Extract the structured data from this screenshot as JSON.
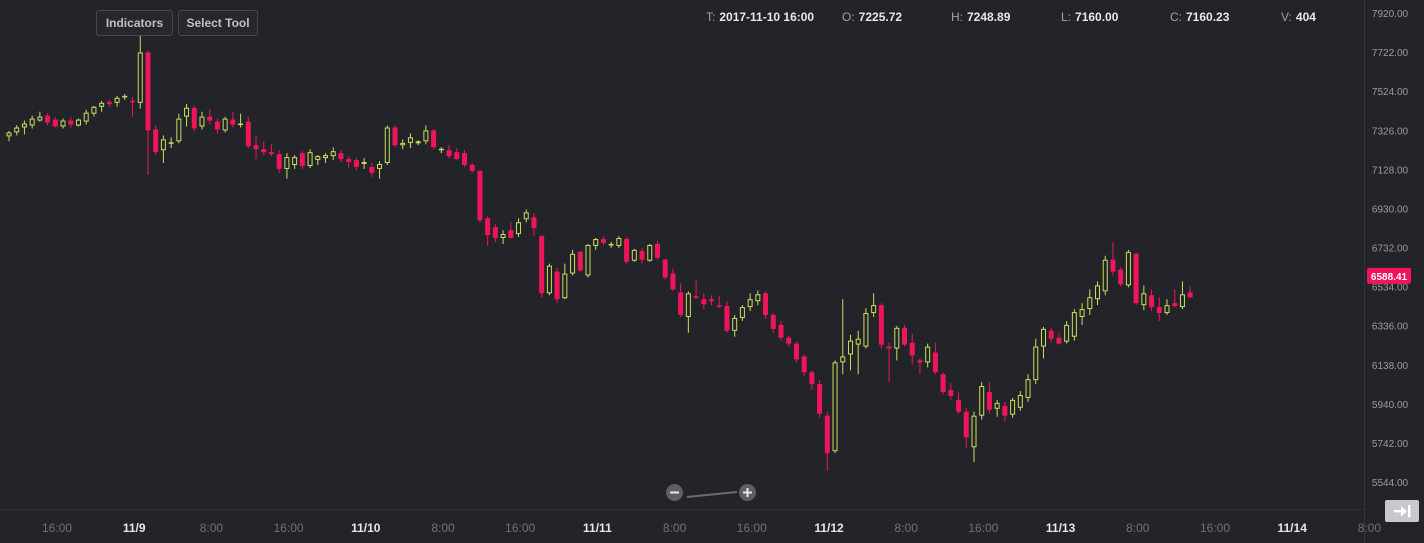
{
  "toolbar": {
    "indicators_label": "Indicators",
    "select_tool_label": "Select Tool"
  },
  "ohlc": {
    "t_label": "T:",
    "t_value": "2017-11-10 16:00",
    "o_label": "O:",
    "o_value": "7225.72",
    "h_label": "H:",
    "h_value": "7248.89",
    "l_label": "L:",
    "l_value": "7160.00",
    "c_label": "C:",
    "c_value": "7160.23",
    "v_label": "V:",
    "v_value": "404"
  },
  "zoom": {
    "out_icon": "minus-icon",
    "in_icon": "plus-icon"
  },
  "go_latest_icon": "arrow-to-end-icon",
  "colors": {
    "background": "#232429",
    "up": "#c7df5e",
    "down": "#f0145a",
    "axis_text": "#9a9ca1",
    "price_tag": "#f0145a"
  },
  "chart_data": {
    "type": "candlestick",
    "interval": "1 hour",
    "y_axis": {
      "ticks": [
        "7920.00",
        "7722.00",
        "7524.00",
        "7326.00",
        "7128.00",
        "6930.00",
        "6732.00",
        "6534.00",
        "6336.00",
        "6138.00",
        "5940.00",
        "5742.00",
        "5544.00"
      ],
      "range": [
        5450,
        7930
      ],
      "position": "right"
    },
    "x_axis": {
      "ticks": [
        {
          "label": "16:00",
          "bold": false
        },
        {
          "label": "11/9",
          "bold": true
        },
        {
          "label": "8:00",
          "bold": false
        },
        {
          "label": "16:00",
          "bold": false
        },
        {
          "label": "11/10",
          "bold": true
        },
        {
          "label": "8:00",
          "bold": false
        },
        {
          "label": "16:00",
          "bold": false
        },
        {
          "label": "11/11",
          "bold": true
        },
        {
          "label": "8:00",
          "bold": false
        },
        {
          "label": "16:00",
          "bold": false
        },
        {
          "label": "11/12",
          "bold": true
        },
        {
          "label": "8:00",
          "bold": false
        },
        {
          "label": "16:00",
          "bold": false
        },
        {
          "label": "11/13",
          "bold": true
        },
        {
          "label": "8:00",
          "bold": false
        },
        {
          "label": "16:00",
          "bold": false
        },
        {
          "label": "11/14",
          "bold": true
        },
        {
          "label": "8:00",
          "bold": false
        }
      ]
    },
    "last_price": "6588.41",
    "last_price_value": 6588.41,
    "grid": false,
    "candles": [
      {
        "o": 7295,
        "h": 7322,
        "l": 7270,
        "c": 7315
      },
      {
        "o": 7315,
        "h": 7352,
        "l": 7300,
        "c": 7340
      },
      {
        "o": 7340,
        "h": 7375,
        "l": 7305,
        "c": 7360
      },
      {
        "o": 7350,
        "h": 7400,
        "l": 7335,
        "c": 7385
      },
      {
        "o": 7375,
        "h": 7420,
        "l": 7370,
        "c": 7395
      },
      {
        "o": 7400,
        "h": 7412,
        "l": 7350,
        "c": 7365
      },
      {
        "o": 7380,
        "h": 7392,
        "l": 7340,
        "c": 7345
      },
      {
        "o": 7345,
        "h": 7385,
        "l": 7335,
        "c": 7375
      },
      {
        "o": 7375,
        "h": 7395,
        "l": 7340,
        "c": 7355
      },
      {
        "o": 7350,
        "h": 7385,
        "l": 7345,
        "c": 7380
      },
      {
        "o": 7370,
        "h": 7430,
        "l": 7355,
        "c": 7415
      },
      {
        "o": 7410,
        "h": 7450,
        "l": 7395,
        "c": 7445
      },
      {
        "o": 7445,
        "h": 7475,
        "l": 7420,
        "c": 7465
      },
      {
        "o": 7470,
        "h": 7480,
        "l": 7445,
        "c": 7458
      },
      {
        "o": 7465,
        "h": 7500,
        "l": 7445,
        "c": 7490
      },
      {
        "o": 7495,
        "h": 7510,
        "l": 7480,
        "c": 7500
      },
      {
        "o": 7475,
        "h": 7495,
        "l": 7395,
        "c": 7470
      },
      {
        "o": 7465,
        "h": 7860,
        "l": 7435,
        "c": 7720
      },
      {
        "o": 7720,
        "h": 7730,
        "l": 7100,
        "c": 7325
      },
      {
        "o": 7330,
        "h": 7350,
        "l": 7200,
        "c": 7215
      },
      {
        "o": 7225,
        "h": 7300,
        "l": 7160,
        "c": 7280
      },
      {
        "o": 7260,
        "h": 7290,
        "l": 7235,
        "c": 7265
      },
      {
        "o": 7270,
        "h": 7410,
        "l": 7260,
        "c": 7385
      },
      {
        "o": 7395,
        "h": 7460,
        "l": 7345,
        "c": 7440
      },
      {
        "o": 7440,
        "h": 7450,
        "l": 7320,
        "c": 7335
      },
      {
        "o": 7345,
        "h": 7420,
        "l": 7330,
        "c": 7395
      },
      {
        "o": 7395,
        "h": 7430,
        "l": 7355,
        "c": 7375
      },
      {
        "o": 7370,
        "h": 7385,
        "l": 7310,
        "c": 7330
      },
      {
        "o": 7325,
        "h": 7395,
        "l": 7315,
        "c": 7385
      },
      {
        "o": 7380,
        "h": 7420,
        "l": 7340,
        "c": 7355
      },
      {
        "o": 7355,
        "h": 7410,
        "l": 7340,
        "c": 7360
      },
      {
        "o": 7370,
        "h": 7395,
        "l": 7235,
        "c": 7245
      },
      {
        "o": 7250,
        "h": 7300,
        "l": 7180,
        "c": 7230
      },
      {
        "o": 7230,
        "h": 7270,
        "l": 7200,
        "c": 7215
      },
      {
        "o": 7215,
        "h": 7255,
        "l": 7195,
        "c": 7205
      },
      {
        "o": 7205,
        "h": 7225,
        "l": 7110,
        "c": 7130
      },
      {
        "o": 7130,
        "h": 7210,
        "l": 7080,
        "c": 7190
      },
      {
        "o": 7150,
        "h": 7200,
        "l": 7130,
        "c": 7190
      },
      {
        "o": 7210,
        "h": 7220,
        "l": 7130,
        "c": 7145
      },
      {
        "o": 7145,
        "h": 7230,
        "l": 7135,
        "c": 7215
      },
      {
        "o": 7175,
        "h": 7200,
        "l": 7150,
        "c": 7195
      },
      {
        "o": 7185,
        "h": 7210,
        "l": 7160,
        "c": 7200
      },
      {
        "o": 7195,
        "h": 7240,
        "l": 7175,
        "c": 7220
      },
      {
        "o": 7210,
        "h": 7225,
        "l": 7165,
        "c": 7180
      },
      {
        "o": 7180,
        "h": 7195,
        "l": 7135,
        "c": 7165
      },
      {
        "o": 7175,
        "h": 7185,
        "l": 7125,
        "c": 7140
      },
      {
        "o": 7155,
        "h": 7185,
        "l": 7130,
        "c": 7165
      },
      {
        "o": 7140,
        "h": 7160,
        "l": 7090,
        "c": 7110
      },
      {
        "o": 7130,
        "h": 7170,
        "l": 7080,
        "c": 7155
      },
      {
        "o": 7160,
        "h": 7350,
        "l": 7150,
        "c": 7340
      },
      {
        "o": 7340,
        "h": 7350,
        "l": 7240,
        "c": 7250
      },
      {
        "o": 7250,
        "h": 7280,
        "l": 7230,
        "c": 7262
      },
      {
        "o": 7262,
        "h": 7310,
        "l": 7235,
        "c": 7290
      },
      {
        "o": 7260,
        "h": 7275,
        "l": 7250,
        "c": 7270
      },
      {
        "o": 7270,
        "h": 7350,
        "l": 7255,
        "c": 7325
      },
      {
        "o": 7325,
        "h": 7330,
        "l": 7230,
        "c": 7240
      },
      {
        "o": 7225,
        "h": 7240,
        "l": 7210,
        "c": 7232
      },
      {
        "o": 7225,
        "h": 7250,
        "l": 7185,
        "c": 7195
      },
      {
        "o": 7215,
        "h": 7235,
        "l": 7175,
        "c": 7180
      },
      {
        "o": 7210,
        "h": 7225,
        "l": 7140,
        "c": 7150
      },
      {
        "o": 7150,
        "h": 7160,
        "l": 7110,
        "c": 7120
      },
      {
        "o": 7120,
        "h": 7125,
        "l": 6860,
        "c": 6870
      },
      {
        "o": 6880,
        "h": 6890,
        "l": 6740,
        "c": 6795
      },
      {
        "o": 6835,
        "h": 6850,
        "l": 6760,
        "c": 6780
      },
      {
        "o": 6780,
        "h": 6820,
        "l": 6750,
        "c": 6800
      },
      {
        "o": 6820,
        "h": 6860,
        "l": 6780,
        "c": 6780
      },
      {
        "o": 6800,
        "h": 6880,
        "l": 6785,
        "c": 6860
      },
      {
        "o": 6875,
        "h": 6925,
        "l": 6860,
        "c": 6910
      },
      {
        "o": 6885,
        "h": 6905,
        "l": 6790,
        "c": 6830
      },
      {
        "o": 6790,
        "h": 6795,
        "l": 6480,
        "c": 6500
      },
      {
        "o": 6500,
        "h": 6650,
        "l": 6490,
        "c": 6640
      },
      {
        "o": 6610,
        "h": 6630,
        "l": 6450,
        "c": 6470
      },
      {
        "o": 6475,
        "h": 6650,
        "l": 6470,
        "c": 6600
      },
      {
        "o": 6600,
        "h": 6720,
        "l": 6590,
        "c": 6700
      },
      {
        "o": 6710,
        "h": 6715,
        "l": 6610,
        "c": 6615
      },
      {
        "o": 6590,
        "h": 6750,
        "l": 6580,
        "c": 6745
      },
      {
        "o": 6740,
        "h": 6780,
        "l": 6720,
        "c": 6775
      },
      {
        "o": 6775,
        "h": 6790,
        "l": 6745,
        "c": 6755
      },
      {
        "o": 6745,
        "h": 6760,
        "l": 6730,
        "c": 6750
      },
      {
        "o": 6740,
        "h": 6790,
        "l": 6730,
        "c": 6780
      },
      {
        "o": 6775,
        "h": 6785,
        "l": 6650,
        "c": 6660
      },
      {
        "o": 6665,
        "h": 6725,
        "l": 6660,
        "c": 6720
      },
      {
        "o": 6715,
        "h": 6730,
        "l": 6650,
        "c": 6670
      },
      {
        "o": 6665,
        "h": 6750,
        "l": 6660,
        "c": 6745
      },
      {
        "o": 6750,
        "h": 6765,
        "l": 6670,
        "c": 6680
      },
      {
        "o": 6670,
        "h": 6675,
        "l": 6570,
        "c": 6580
      },
      {
        "o": 6600,
        "h": 6625,
        "l": 6510,
        "c": 6520
      },
      {
        "o": 6505,
        "h": 6550,
        "l": 6380,
        "c": 6390
      },
      {
        "o": 6380,
        "h": 6510,
        "l": 6300,
        "c": 6500
      },
      {
        "o": 6485,
        "h": 6570,
        "l": 6470,
        "c": 6480
      },
      {
        "o": 6470,
        "h": 6500,
        "l": 6420,
        "c": 6445
      },
      {
        "o": 6470,
        "h": 6490,
        "l": 6440,
        "c": 6460
      },
      {
        "o": 6440,
        "h": 6485,
        "l": 6425,
        "c": 6435
      },
      {
        "o": 6435,
        "h": 6460,
        "l": 6300,
        "c": 6310
      },
      {
        "o": 6310,
        "h": 6390,
        "l": 6280,
        "c": 6375
      },
      {
        "o": 6375,
        "h": 6440,
        "l": 6360,
        "c": 6430
      },
      {
        "o": 6430,
        "h": 6500,
        "l": 6410,
        "c": 6470
      },
      {
        "o": 6460,
        "h": 6515,
        "l": 6440,
        "c": 6495
      },
      {
        "o": 6500,
        "h": 6510,
        "l": 6370,
        "c": 6390
      },
      {
        "o": 6390,
        "h": 6400,
        "l": 6300,
        "c": 6320
      },
      {
        "o": 6340,
        "h": 6360,
        "l": 6260,
        "c": 6275
      },
      {
        "o": 6275,
        "h": 6285,
        "l": 6230,
        "c": 6245
      },
      {
        "o": 6245,
        "h": 6255,
        "l": 6150,
        "c": 6165
      },
      {
        "o": 6180,
        "h": 6190,
        "l": 6080,
        "c": 6100
      },
      {
        "o": 6100,
        "h": 6110,
        "l": 6010,
        "c": 6040
      },
      {
        "o": 6040,
        "h": 6060,
        "l": 5870,
        "c": 5890
      },
      {
        "o": 5880,
        "h": 5900,
        "l": 5600,
        "c": 5690
      },
      {
        "o": 5700,
        "h": 6160,
        "l": 5690,
        "c": 6150
      },
      {
        "o": 6150,
        "h": 6470,
        "l": 6090,
        "c": 6180
      },
      {
        "o": 6190,
        "h": 6290,
        "l": 6110,
        "c": 6260
      },
      {
        "o": 6240,
        "h": 6310,
        "l": 6090,
        "c": 6270
      },
      {
        "o": 6230,
        "h": 6425,
        "l": 6220,
        "c": 6400
      },
      {
        "o": 6400,
        "h": 6500,
        "l": 6380,
        "c": 6440
      },
      {
        "o": 6440,
        "h": 6450,
        "l": 6220,
        "c": 6240
      },
      {
        "o": 6230,
        "h": 6250,
        "l": 6050,
        "c": 6220
      },
      {
        "o": 6220,
        "h": 6335,
        "l": 6160,
        "c": 6325
      },
      {
        "o": 6325,
        "h": 6340,
        "l": 6230,
        "c": 6240
      },
      {
        "o": 6250,
        "h": 6295,
        "l": 6140,
        "c": 6185
      },
      {
        "o": 6160,
        "h": 6170,
        "l": 6090,
        "c": 6150
      },
      {
        "o": 6150,
        "h": 6245,
        "l": 6125,
        "c": 6230
      },
      {
        "o": 6200,
        "h": 6250,
        "l": 6090,
        "c": 6100
      },
      {
        "o": 6090,
        "h": 6100,
        "l": 5990,
        "c": 6000
      },
      {
        "o": 6010,
        "h": 6045,
        "l": 5960,
        "c": 5980
      },
      {
        "o": 5960,
        "h": 6000,
        "l": 5890,
        "c": 5900
      },
      {
        "o": 5900,
        "h": 5920,
        "l": 5715,
        "c": 5770
      },
      {
        "o": 5720,
        "h": 5900,
        "l": 5645,
        "c": 5880
      },
      {
        "o": 5880,
        "h": 6050,
        "l": 5860,
        "c": 6030
      },
      {
        "o": 6000,
        "h": 6050,
        "l": 5890,
        "c": 5910
      },
      {
        "o": 5915,
        "h": 5960,
        "l": 5875,
        "c": 5945
      },
      {
        "o": 5930,
        "h": 5950,
        "l": 5850,
        "c": 5880
      },
      {
        "o": 5885,
        "h": 5970,
        "l": 5870,
        "c": 5960
      },
      {
        "o": 5920,
        "h": 6005,
        "l": 5905,
        "c": 5985
      },
      {
        "o": 5970,
        "h": 6090,
        "l": 5950,
        "c": 6065
      },
      {
        "o": 6060,
        "h": 6270,
        "l": 6040,
        "c": 6230
      },
      {
        "o": 6230,
        "h": 6330,
        "l": 6170,
        "c": 6320
      },
      {
        "o": 6310,
        "h": 6325,
        "l": 6250,
        "c": 6270
      },
      {
        "o": 6275,
        "h": 6300,
        "l": 6240,
        "c": 6245
      },
      {
        "o": 6255,
        "h": 6360,
        "l": 6245,
        "c": 6340
      },
      {
        "o": 6280,
        "h": 6420,
        "l": 6260,
        "c": 6405
      },
      {
        "o": 6380,
        "h": 6450,
        "l": 6340,
        "c": 6420
      },
      {
        "o": 6420,
        "h": 6520,
        "l": 6390,
        "c": 6480
      },
      {
        "o": 6470,
        "h": 6560,
        "l": 6440,
        "c": 6540
      },
      {
        "o": 6510,
        "h": 6690,
        "l": 6490,
        "c": 6670
      },
      {
        "o": 6670,
        "h": 6760,
        "l": 6590,
        "c": 6610
      },
      {
        "o": 6620,
        "h": 6630,
        "l": 6535,
        "c": 6545
      },
      {
        "o": 6540,
        "h": 6720,
        "l": 6530,
        "c": 6710
      },
      {
        "o": 6700,
        "h": 6705,
        "l": 6440,
        "c": 6450
      },
      {
        "o": 6440,
        "h": 6540,
        "l": 6415,
        "c": 6500
      },
      {
        "o": 6490,
        "h": 6520,
        "l": 6410,
        "c": 6430
      },
      {
        "o": 6430,
        "h": 6480,
        "l": 6360,
        "c": 6400
      },
      {
        "o": 6400,
        "h": 6470,
        "l": 6390,
        "c": 6440
      },
      {
        "o": 6450,
        "h": 6520,
        "l": 6430,
        "c": 6435
      },
      {
        "o": 6430,
        "h": 6560,
        "l": 6420,
        "c": 6495
      },
      {
        "o": 6505,
        "h": 6535,
        "l": 6475,
        "c": 6480
      }
    ]
  }
}
